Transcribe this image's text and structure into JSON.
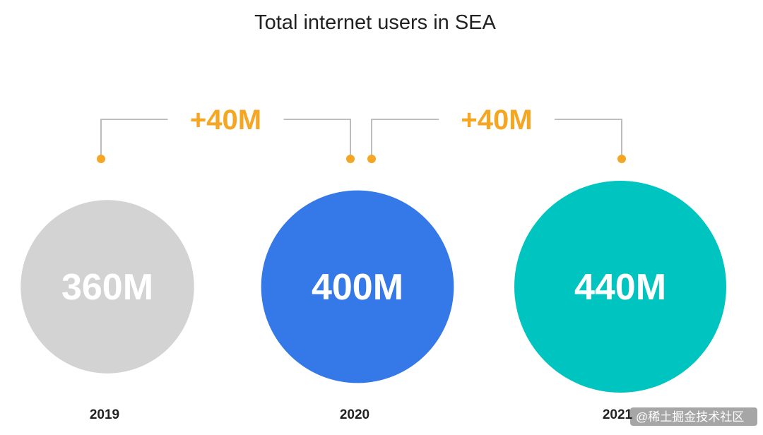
{
  "chart_data": {
    "type": "bubble",
    "title": "Total internet users in SEA",
    "categories": [
      "2019",
      "2020",
      "2021"
    ],
    "series": [
      {
        "values": [
          360,
          400,
          440
        ],
        "labels": [
          "360M",
          "400M",
          "440M"
        ],
        "colors": [
          "#d3d3d3",
          "#3578e8",
          "#00c4c0"
        ]
      }
    ],
    "annotations": [
      {
        "from": "2019",
        "to": "2020",
        "text": "+40M"
      },
      {
        "from": "2020",
        "to": "2021",
        "text": "+40M"
      }
    ],
    "accent_color": "#f5a623"
  },
  "watermark": "@稀土掘金技术社区"
}
